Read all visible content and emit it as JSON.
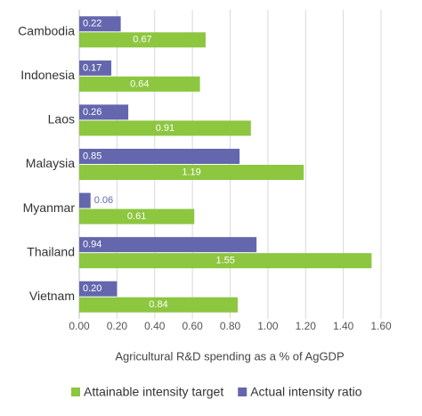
{
  "chart_data": {
    "type": "bar",
    "orientation": "horizontal",
    "categories": [
      "Cambodia",
      "Indonesia",
      "Laos",
      "Malaysia",
      "Myanmar",
      "Thailand",
      "Vietnam"
    ],
    "series": [
      {
        "name": "Actual intensity ratio",
        "color": "#6467ad",
        "values": [
          0.22,
          0.17,
          0.26,
          0.85,
          0.06,
          0.94,
          0.2
        ],
        "value_labels": [
          "0.22",
          "0.17",
          "0.26",
          "0.85",
          "0.06",
          "0.94",
          "0.20"
        ]
      },
      {
        "name": "Attainable intensity target",
        "color": "#8dc63f",
        "values": [
          0.67,
          0.64,
          0.91,
          1.19,
          0.61,
          1.55,
          0.84
        ],
        "value_labels": [
          "0.67",
          "0.64",
          "0.91",
          "1.19",
          "0.61",
          "1.55",
          "0.84"
        ]
      }
    ],
    "xlabel": "Agricultural R&D spending as a % of AgGDP",
    "xlim": [
      0,
      1.6
    ],
    "xticks": [
      {
        "value": 0,
        "label": "0.00"
      },
      {
        "value": 0.2,
        "label": "0.20"
      },
      {
        "value": 0.4,
        "label": "0.40"
      },
      {
        "value": 0.6,
        "label": "0.60"
      },
      {
        "value": 0.8,
        "label": "0.80"
      },
      {
        "value": 1.0,
        "label": "1.00"
      },
      {
        "value": 1.2,
        "label": "1.20"
      },
      {
        "value": 1.4,
        "label": "1.40"
      },
      {
        "value": 1.6,
        "label": "1.60"
      }
    ],
    "grid": true,
    "legend": "bottom"
  }
}
